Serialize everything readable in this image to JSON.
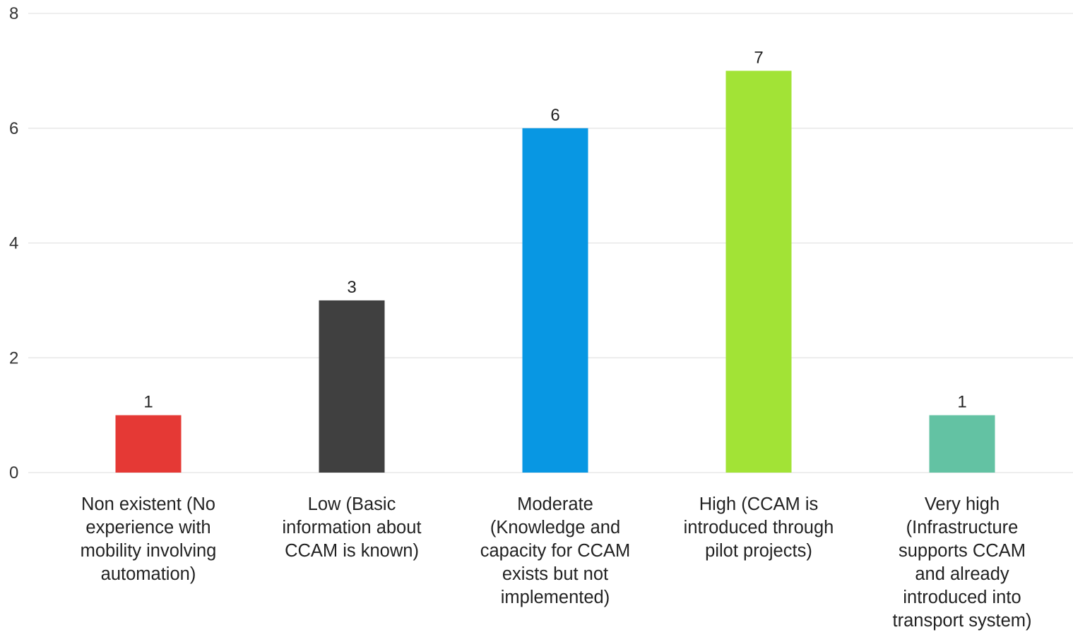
{
  "chart_data": {
    "type": "bar",
    "title": "",
    "xlabel": "",
    "ylabel": "",
    "ylim": [
      0,
      8
    ],
    "yticks": [
      0,
      2,
      4,
      6,
      8
    ],
    "grid": true,
    "legend": "none",
    "categories": [
      [
        "Non existent (No",
        "experience with",
        "mobility involving",
        "automation)"
      ],
      [
        "Low (Basic",
        "information about",
        "CCAM is known)"
      ],
      [
        "Moderate",
        "(Knowledge and",
        "capacity for CCAM",
        "exists but not",
        "implemented)"
      ],
      [
        "High (CCAM is",
        "introduced through",
        "pilot projects)"
      ],
      [
        "Very high",
        "(Infrastructure",
        "supports CCAM",
        "and already",
        "introduced into",
        "transport system)"
      ]
    ],
    "values": [
      1,
      3,
      6,
      7,
      1
    ],
    "data_labels": [
      "1",
      "3",
      "6",
      "7",
      "1"
    ],
    "colors": [
      "#e53935",
      "#404040",
      "#0897e3",
      "#a2e336",
      "#63c2a3"
    ]
  }
}
